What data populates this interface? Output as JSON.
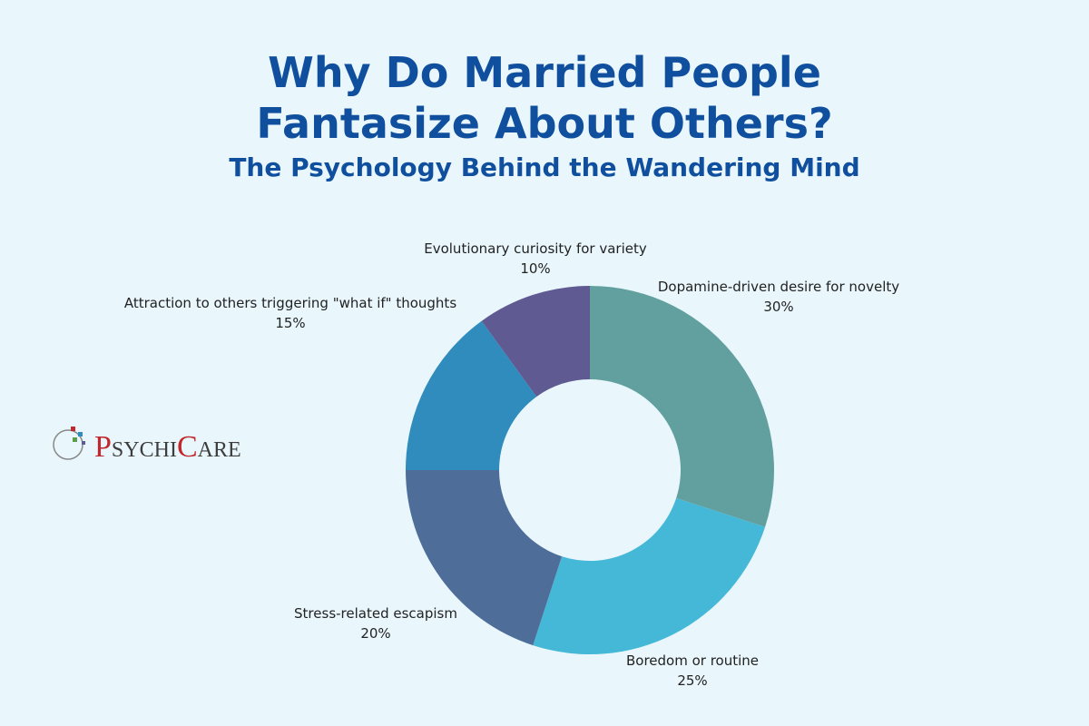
{
  "brand": "PsychiCare",
  "chart_data": {
    "type": "donut",
    "title": "Why Do Married People Fantasize About Others?",
    "subtitle": "The Psychology Behind the Wandering Mind",
    "categories": [
      "Dopamine-driven desire for novelty",
      "Boredom or routine",
      "Stress-related escapism",
      "Attraction to others triggering \"what if\" thoughts",
      "Evolutionary curiosity for variety"
    ],
    "values": [
      30,
      25,
      20,
      15,
      10
    ],
    "value_labels": [
      "30%",
      "25%",
      "20%",
      "15%",
      "10%"
    ],
    "colors": [
      "#62a0a0",
      "#45b8d8",
      "#4f6d99",
      "#2f8cbd",
      "#605a92"
    ]
  }
}
